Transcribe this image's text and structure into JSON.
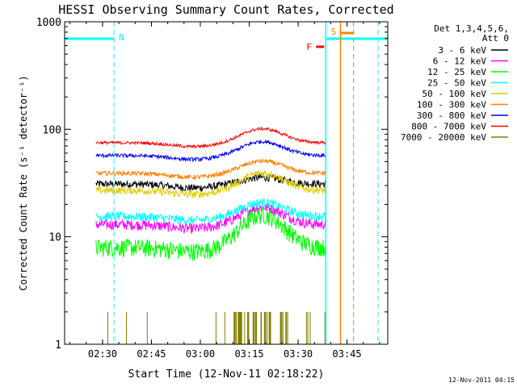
{
  "chart_data": {
    "type": "line",
    "title": "HESSI Observing Summary Count Rates, Corrected",
    "ylabel": "Corrected Count Rate (s⁻¹ detector⁻¹)",
    "xlabel": "Start Time (12-Nov-11 02:18:22)",
    "yscale": "log",
    "ylim": [
      1,
      1000
    ],
    "xlim": [
      "02:18:22",
      "03:57:30"
    ],
    "x_ticks": [
      "02:30",
      "02:45",
      "03:00",
      "03:15",
      "03:30",
      "03:45"
    ],
    "y_ticks": [
      "1",
      "10",
      "100",
      "1000"
    ],
    "legend_title": [
      "Det 1,3,4,5,6,",
      "Att 0"
    ],
    "legend_placement": "right",
    "timestamp": "12-Nov-2011 04:15",
    "series": [
      {
        "name": "3 - 6 keV",
        "color": "#000000",
        "base": 31,
        "bump": 1.15,
        "noise": 0.05
      },
      {
        "name": "6 - 12 keV",
        "color": "#ff00ff",
        "base": 13,
        "bump": 1.45,
        "noise": 0.07
      },
      {
        "name": "12 - 25 keV",
        "color": "#00ff00",
        "base": 8,
        "bump": 2.0,
        "noise": 0.12
      },
      {
        "name": "25 - 50 keV",
        "color": "#00ffff",
        "base": 15.5,
        "bump": 1.35,
        "noise": 0.06
      },
      {
        "name": "50 - 100 keV",
        "color": "#ddcc00",
        "base": 27,
        "bump": 1.45,
        "noise": 0.05
      },
      {
        "name": "100 - 300 keV",
        "color": "#ff8000",
        "base": 39,
        "bump": 1.3,
        "noise": 0.03
      },
      {
        "name": "300 - 800 keV",
        "color": "#0000ff",
        "base": 57,
        "bump": 1.35,
        "noise": 0.025
      },
      {
        "name": "800 - 7000 keV",
        "color": "#ff0000",
        "base": 75,
        "bump": 1.35,
        "noise": 0.02
      },
      {
        "name": "7000 - 20000 keV",
        "color": "#808000",
        "base": 1,
        "bump": 1.0,
        "noise": 0.0
      }
    ],
    "data_span": [
      "02:28:00",
      "03:38:30"
    ],
    "annotations": [
      {
        "label": "N",
        "color": "#00ffff"
      },
      {
        "label": "F",
        "color": "#ff0000"
      },
      {
        "label": "S",
        "color": "#ff8000"
      }
    ]
  }
}
